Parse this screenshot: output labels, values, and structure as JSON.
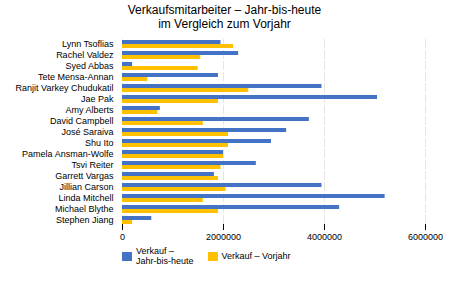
{
  "chart_data": {
    "type": "bar",
    "orientation": "horizontal",
    "title": "Verkaufsmitarbeiter – Jahr-bis-heute\nim Vergleich zum Vorjahr",
    "categories": [
      "Stephen Jiang",
      "Michael Blythe",
      "Linda Mitchell",
      "Jillian Carson",
      "Garrett Vargas",
      "Tsvi Reiter",
      "Pamela Ansman-Wolfe",
      "Shu Ito",
      "José Saraiva",
      "David Campbell",
      "Amy Alberts",
      "Jae Pak",
      "Ranjit Varkey Chudukatil",
      "Tete Mensa-Annan",
      "Syed Abbas",
      "Rachel Valdez",
      "Lynn Tsoflias"
    ],
    "series": [
      {
        "name": "Verkauf –\nJahr-bis-heute",
        "color": "#4472C4",
        "values": [
          580000,
          4300000,
          5200000,
          3950000,
          1820000,
          2650000,
          2000000,
          2950000,
          3250000,
          3700000,
          750000,
          5050000,
          3950000,
          1900000,
          200000,
          2300000,
          1950000
        ]
      },
      {
        "name": "Verkauf – Vorjahr",
        "color": "#FFC000",
        "values": [
          200000,
          1900000,
          1600000,
          2050000,
          1900000,
          1950000,
          2000000,
          2100000,
          2100000,
          1600000,
          700000,
          1900000,
          2500000,
          500000,
          1500000,
          1550000,
          2200000
        ]
      }
    ],
    "xlim": [
      0,
      6000000
    ],
    "xticks": [
      0,
      2000000,
      4000000,
      6000000
    ],
    "grid": true,
    "legend": "lower left"
  }
}
